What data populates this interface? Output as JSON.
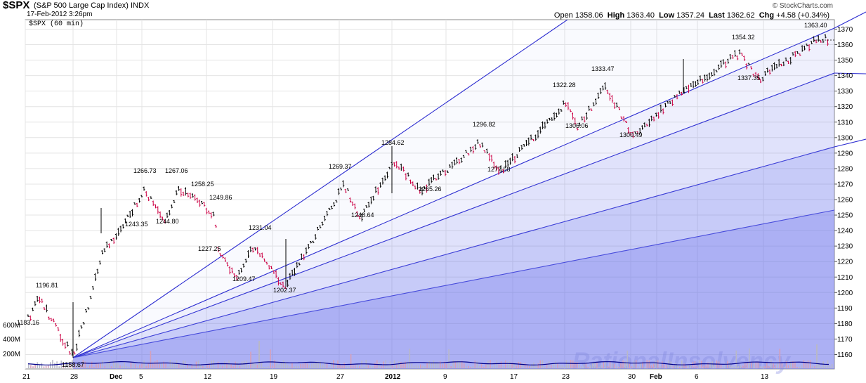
{
  "header": {
    "ticker": "$SPX",
    "description": "(S&P 500 Large Cap Index)",
    "exchange": "INDX",
    "date": "17-Feb-2012 3:26pm",
    "credit": "© StockCharts.com",
    "period": "$SPX (60 min)",
    "quote": {
      "open_label": "Open",
      "open": "1358.06",
      "high_label": "High",
      "high": "1363.40",
      "low_label": "Low",
      "low": "1357.24",
      "last_label": "Last",
      "last": "1362.62",
      "chg_label": "Chg",
      "chg": "+4.58 (+0.34%)"
    }
  },
  "chart_data": {
    "type": "line",
    "title": "$SPX (60 min)",
    "ylim": [
      1150,
      1372
    ],
    "y_ticks": [
      1160,
      1170,
      1180,
      1190,
      1200,
      1210,
      1220,
      1230,
      1240,
      1250,
      1260,
      1270,
      1280,
      1290,
      1300,
      1310,
      1320,
      1330,
      1340,
      1350,
      1360,
      1370
    ],
    "x_ticks": [
      "21",
      "28",
      "Dec",
      "5",
      "12",
      "19",
      "27",
      "2012",
      "9",
      "17",
      "23",
      "30",
      "Feb",
      "6",
      "13"
    ],
    "volume_ticks": [
      "600M",
      "400M",
      "200M"
    ],
    "series": [
      {
        "values": [
          1183.16,
          1196.81,
          1158.67,
          1190,
          1225,
          1243.35,
          1266.73,
          1244.8,
          1267.06,
          1258.25,
          1249.86,
          1227.25,
          1231.04,
          1209.47,
          1202.37,
          1269.37,
          1248.64,
          1284.62,
          1265.26,
          1296.82,
          1277.58,
          1322.28,
          1306.06,
          1333.47,
          1300.49,
          1325,
          1354.32,
          1337.35,
          1363.4
        ]
      }
    ],
    "annotations": [
      "1183.16",
      "1196.81",
      "1158.67",
      "1243.35",
      "1266.73",
      "1244.80",
      "1267.06",
      "1258.25",
      "1249.86",
      "1227.25",
      "1231.04",
      "1209.47",
      "1202.37",
      "1269.37",
      "1248.64",
      "1284.62",
      "1265.26",
      "1296.82",
      "1277.58",
      "1322.28",
      "1306.06",
      "1333.47",
      "1300.49",
      "1354.32",
      "1337.35",
      "1363.40"
    ],
    "watermark": "RationalInsolvency",
    "colors": {
      "fan_line": "#2a2ad0",
      "price_up": "#000000",
      "price_down": "#cc0044",
      "shade": "#6c73ec",
      "volume_line": "#00008b"
    }
  }
}
